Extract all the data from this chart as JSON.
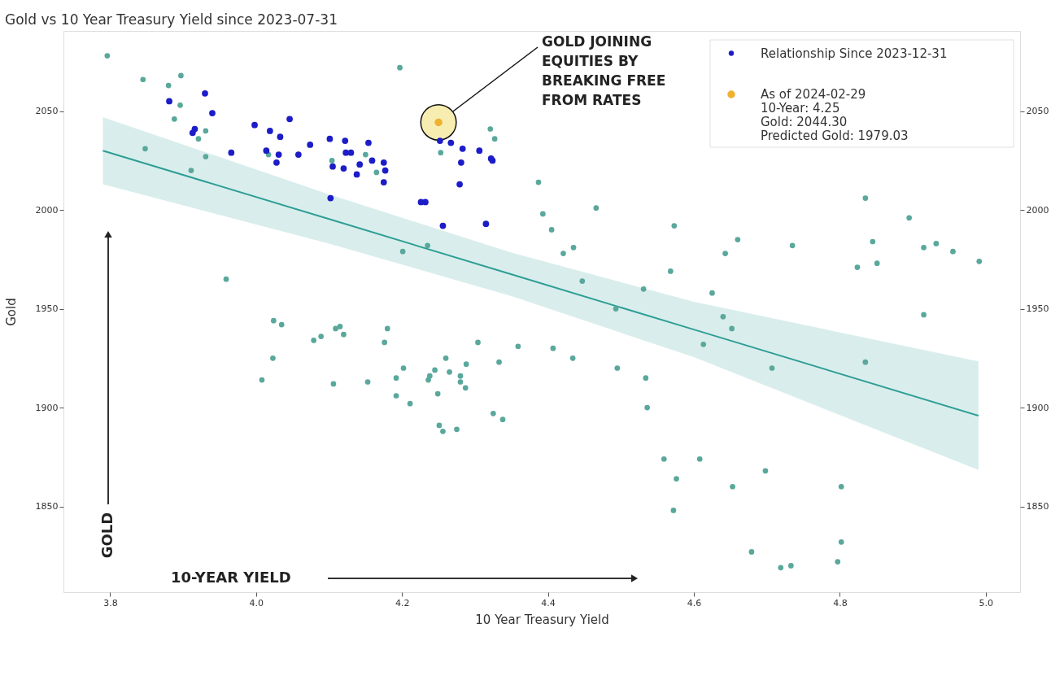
{
  "chart_data": {
    "type": "scatter",
    "title": "Gold vs 10 Year Treasury Yield since 2023-07-31",
    "xlabel": "10 Year Treasury Yield",
    "ylabel": "Gold",
    "xlim": [
      3.736,
      5.047
    ],
    "ylim": [
      1806.6,
      2090.6
    ],
    "y2lim": [
      1806.6,
      2090.6
    ],
    "xticks": [
      3.8,
      {
        "value": 4,
        "label": "4.0"
      },
      4.2,
      4.4,
      4.6,
      4.8,
      {
        "value": 5,
        "label": "5.0"
      }
    ],
    "yticks": [
      1850,
      1900,
      1950,
      2000,
      2050
    ],
    "y2ticks": [
      1850,
      1900,
      1950,
      2000,
      2050
    ],
    "grid": false,
    "legend": "top right",
    "annotations": [
      {
        "text": "GOLD JOINING\nEQUITIES BY\nBREAKING FREE\nFROM RATES",
        "x": 4.25,
        "y": 2044.3
      },
      "GOLD",
      "10-YEAR YIELD"
    ],
    "series": [
      {
        "type": "line",
        "marker": "none",
        "color": "#2f9e96",
        "x": [
          3.79,
          4.1,
          4.35,
          4.6,
          4.99
        ],
        "values": [
          2030,
          1995.4,
          1967.4,
          1939.5,
          1895.9
        ],
        "lower": [
          2013,
          1983,
          1956.4,
          1925.5,
          1868.4
        ],
        "upper": [
          2047,
          2007.9,
          1978.4,
          1953.5,
          1923.4
        ]
      },
      {
        "marker": "circle",
        "color": "#5aa89c",
        "x": [
          3.796,
          3.845,
          3.88,
          3.897,
          3.896,
          3.888,
          3.931,
          3.921,
          3.848,
          3.931,
          3.911,
          3.959,
          4.017,
          4.104,
          4.15,
          4.165,
          4.197,
          4.321,
          4.327,
          4.253,
          4.387,
          4.393,
          4.466,
          4.405,
          4.573,
          4.435,
          4.421,
          4.568,
          4.447,
          4.531,
          4.201,
          4.235,
          4.625,
          4.643,
          4.66,
          4.735,
          4.835,
          4.845,
          4.824,
          4.851,
          4.895,
          4.915,
          4.932,
          4.955,
          4.991,
          4.64,
          4.652,
          4.613,
          4.707,
          4.835,
          4.915,
          4.608,
          4.698,
          4.653,
          4.802,
          4.802,
          4.679,
          4.719,
          4.733,
          4.797,
          4.493,
          4.18,
          4.176,
          4.304,
          4.359,
          4.407,
          4.434,
          4.26,
          4.333,
          4.202,
          4.192,
          4.245,
          4.265,
          4.238,
          4.236,
          4.288,
          4.28,
          4.28,
          4.287,
          4.249,
          4.192,
          4.211,
          4.495,
          4.534,
          4.536,
          4.325,
          4.338,
          4.251,
          4.256,
          4.275,
          4.559,
          4.576,
          4.572,
          4.024,
          4.035,
          4.079,
          4.089,
          4.109,
          4.115,
          4.12,
          4.023,
          4.008,
          4.106,
          4.153
        ],
        "values": [
          2078,
          2066,
          2063,
          2068,
          2053,
          2046,
          2040,
          2036,
          2031,
          2027,
          2020,
          1965,
          2028,
          2025,
          2028,
          2019,
          2072,
          2041,
          2036,
          2029,
          2014,
          1998,
          2001,
          1990,
          1992,
          1981,
          1978,
          1969,
          1964,
          1960,
          1979,
          1982,
          1958,
          1978,
          1985,
          1982,
          2006,
          1984,
          1971,
          1973,
          1996,
          1981,
          1983,
          1979,
          1974,
          1946,
          1940,
          1932,
          1920,
          1923,
          1947,
          1874,
          1868,
          1860,
          1860,
          1832,
          1827,
          1819,
          1820,
          1822,
          1950,
          1940,
          1933,
          1933,
          1931,
          1930,
          1925,
          1925,
          1923,
          1920,
          1915,
          1919,
          1918,
          1916,
          1914,
          1922,
          1916,
          1913,
          1910,
          1907,
          1906,
          1902,
          1920,
          1915,
          1900,
          1897,
          1894,
          1891,
          1888,
          1889,
          1874,
          1864,
          1848,
          1944,
          1942,
          1934,
          1936,
          1940,
          1941,
          1937,
          1925,
          1914,
          1912,
          1913
        ]
      },
      {
        "name": "Relationship Since 2023-12-31",
        "marker": "circle",
        "color": "#1c1cc8",
        "x": [
          3.93,
          3.881,
          3.94,
          3.916,
          3.913,
          3.966,
          3.998,
          4.019,
          4.033,
          4.046,
          4.014,
          4.031,
          4.028,
          4.058,
          4.074,
          4.101,
          4.122,
          4.123,
          4.13,
          4.154,
          4.105,
          4.12,
          4.142,
          4.138,
          4.159,
          4.102,
          4.175,
          4.177,
          4.175,
          4.252,
          4.267,
          4.283,
          4.306,
          4.322,
          4.324,
          4.281,
          4.279,
          4.226,
          4.232,
          4.256,
          4.315
        ],
        "values": [
          2059,
          2055,
          2049,
          2041,
          2039,
          2029,
          2043,
          2040,
          2037,
          2046,
          2030,
          2028,
          2024,
          2028,
          2033,
          2036,
          2035,
          2029,
          2029,
          2034,
          2022,
          2021,
          2023,
          2018,
          2025,
          2006,
          2024,
          2020,
          2014,
          2035,
          2034,
          2031,
          2030,
          2026,
          2025,
          2024,
          2013,
          2004,
          2004,
          1992,
          1993
        ]
      },
      {
        "name": "As of 2024-02-29\n10-Year: 4.25\nGold: 2044.30\nPredicted Gold: 1979.03",
        "marker": "circle",
        "color": "#f0b030",
        "x": [
          4.25
        ],
        "values": [
          2044.3
        ]
      }
    ]
  }
}
